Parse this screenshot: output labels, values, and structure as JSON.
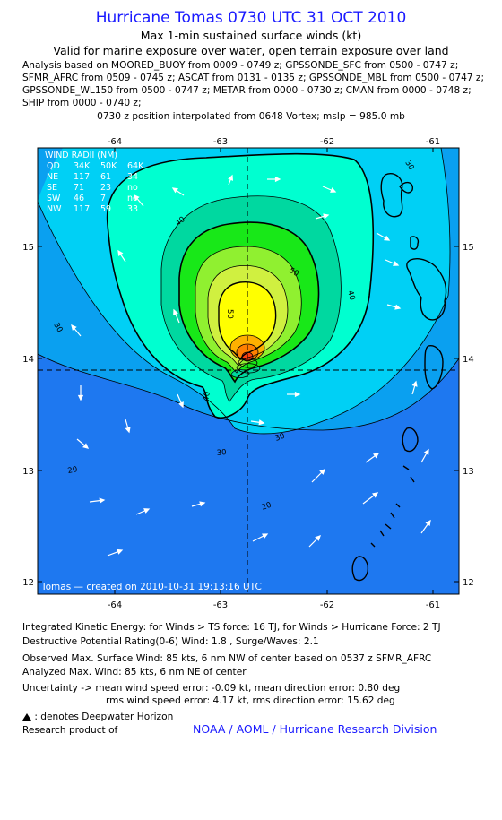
{
  "header": {
    "title": "Hurricane Tomas 0730 UTC 31 OCT 2010",
    "subtitle": "Max 1-min sustained surface winds (kt)",
    "validity": "Valid for marine exposure over water, open terrain exposure over land",
    "analysis_lines": [
      "Analysis based on MOORED_BUOY from 0009 - 0749 z; GPSSONDE_SFC from 0500 - 0747 z;",
      "SFMR_AFRC from 0509 - 0745 z; ASCAT from 0131 - 0135 z; GPSSONDE_MBL from 0500 - 0747 z;",
      "GPSSONDE_WL150 from 0500 - 0747 z; METAR from 0000 - 0730 z; CMAN from 0000 - 0748 z;",
      "SHIP from 0000 - 0740 z;"
    ],
    "interpolation": "0730 z position interpolated from 0648 Vortex; mslp = 985.0 mb"
  },
  "map": {
    "lon_ticks": [
      "-64",
      "-63",
      "-62",
      "-61"
    ],
    "lat_ticks": [
      "15",
      "14",
      "13",
      "12"
    ],
    "lon_range": [
      -64.75,
      -60.75
    ],
    "lat_range": [
      11.95,
      14.95
    ],
    "center": {
      "lon": -62.83,
      "lat": 13.88
    },
    "contour_labels": [
      "40",
      "50",
      "40",
      "50",
      "30",
      "40",
      "30",
      "30",
      "20",
      "20"
    ],
    "credit": "Tomas — created on 2010-10-31 19:13:16 UTC",
    "wind_radii": {
      "title": "WIND RADII (NM)",
      "header": [
        "QD",
        "34K",
        "50K",
        "64K"
      ],
      "rows": [
        [
          "NE",
          "117",
          "61",
          "34"
        ],
        [
          "SE",
          "71",
          "23",
          "no"
        ],
        [
          "SW",
          "46",
          "7",
          "no"
        ],
        [
          "NW",
          "117",
          "59",
          "33"
        ]
      ]
    },
    "colors": {
      "c1020": "#1e78f0",
      "c2030": "#0aa0f0",
      "c3040": "#00d0f5",
      "c4050": "#00ffd0",
      "c5060": "#00d8a0",
      "c6070": "#18e818",
      "c7080": "#90f030",
      "c8090": "#d0f040",
      "c90100": "#ffff00",
      "c100": "#ffb000",
      "c110": "#ff8000",
      "c120": "#ff4010"
    }
  },
  "footer": {
    "ike": "Integrated Kinetic Energy:  for Winds > TS force: 16 TJ,  for Winds > Hurricane Force: 2 TJ",
    "dpr": "Destructive Potential Rating(0-6)   Wind: 1.8 , Surge/Waves: 2.1",
    "obs_max": "Observed Max. Surface Wind: 85 kts, 6 nm NW of center based on 0537 z SFMR_AFRC",
    "analyzed_max": "Analyzed Max. Wind: 85 kts, 6 nm NE of center",
    "uncertainty_1": "Uncertainty -> mean wind speed error:  -0.09 kt,   mean direction error: 0.80 deg",
    "uncertainty_2": "rms wind speed error: 4.17 kt,   rms direction error: 15.62 deg",
    "deepwater": ": denotes Deepwater Horizon",
    "research": "Research product of",
    "noaa": "NOAA / AOML / Hurricane Research Division"
  }
}
